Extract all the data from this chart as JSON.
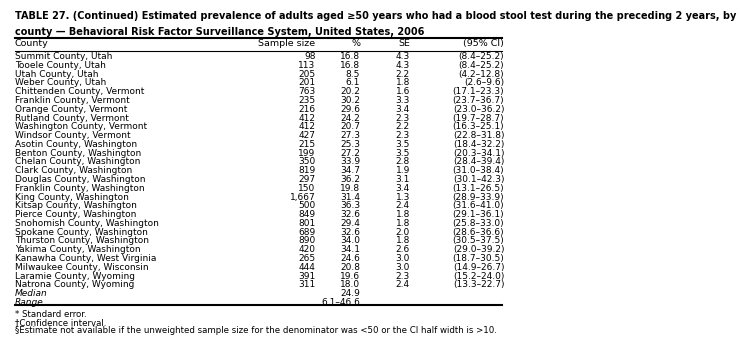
{
  "title_line1": "TABLE 27. (Continued) Estimated prevalence of adults aged ≥50 years who had a blood stool test during the preceding 2 years, by",
  "title_line2": "county — Behavioral Risk Factor Surveillance System, United States, 2006",
  "col_headers": [
    "County",
    "Sample size",
    "%",
    "SE",
    "(95% CI)"
  ],
  "rows": [
    [
      "Summit County, Utah",
      "98",
      "16.8",
      "4.3",
      "(8.4–25.2)"
    ],
    [
      "Tooele County, Utah",
      "113",
      "16.8",
      "4.3",
      "(8.4–25.2)"
    ],
    [
      "Utah County, Utah",
      "205",
      "8.5",
      "2.2",
      "(4.2–12.8)"
    ],
    [
      "Weber County, Utah",
      "201",
      "6.1",
      "1.8",
      "(2.6–9.6)"
    ],
    [
      "Chittenden County, Vermont",
      "763",
      "20.2",
      "1.6",
      "(17.1–23.3)"
    ],
    [
      "Franklin County, Vermont",
      "235",
      "30.2",
      "3.3",
      "(23.7–36.7)"
    ],
    [
      "Orange County, Vermont",
      "216",
      "29.6",
      "3.4",
      "(23.0–36.2)"
    ],
    [
      "Rutland County, Vermont",
      "412",
      "24.2",
      "2.3",
      "(19.7–28.7)"
    ],
    [
      "Washington County, Vermont",
      "412",
      "20.7",
      "2.2",
      "(16.3–25.1)"
    ],
    [
      "Windsor County, Vermont",
      "427",
      "27.3",
      "2.3",
      "(22.8–31.8)"
    ],
    [
      "Asotin County, Washington",
      "215",
      "25.3",
      "3.5",
      "(18.4–32.2)"
    ],
    [
      "Benton County, Washington",
      "199",
      "27.2",
      "3.5",
      "(20.3–34.1)"
    ],
    [
      "Chelan County, Washington",
      "350",
      "33.9",
      "2.8",
      "(28.4–39.4)"
    ],
    [
      "Clark County, Washington",
      "819",
      "34.7",
      "1.9",
      "(31.0–38.4)"
    ],
    [
      "Douglas County, Washington",
      "297",
      "36.2",
      "3.1",
      "(30.1–42.3)"
    ],
    [
      "Franklin County, Washington",
      "150",
      "19.8",
      "3.4",
      "(13.1–26.5)"
    ],
    [
      "King County, Washington",
      "1,667",
      "31.4",
      "1.3",
      "(28.9–33.9)"
    ],
    [
      "Kitsap County, Washington",
      "500",
      "36.3",
      "2.4",
      "(31.6–41.0)"
    ],
    [
      "Pierce County, Washington",
      "849",
      "32.6",
      "1.8",
      "(29.1–36.1)"
    ],
    [
      "Snohomish County, Washington",
      "801",
      "29.4",
      "1.8",
      "(25.8–33.0)"
    ],
    [
      "Spokane County, Washington",
      "689",
      "32.6",
      "2.0",
      "(28.6–36.6)"
    ],
    [
      "Thurston County, Washington",
      "890",
      "34.0",
      "1.8",
      "(30.5–37.5)"
    ],
    [
      "Yakima County, Washington",
      "420",
      "34.1",
      "2.6",
      "(29.0–39.2)"
    ],
    [
      "Kanawha County, West Virginia",
      "265",
      "24.6",
      "3.0",
      "(18.7–30.5)"
    ],
    [
      "Milwaukee County, Wisconsin",
      "444",
      "20.8",
      "3.0",
      "(14.9–26.7)"
    ],
    [
      "Laramie County, Wyoming",
      "391",
      "19.6",
      "2.3",
      "(15.2–24.0)"
    ],
    [
      "Natrona County, Wyoming",
      "311",
      "18.0",
      "2.4",
      "(13.3–22.7)"
    ]
  ],
  "footer_rows": [
    [
      "Median",
      "",
      "24.9",
      "",
      ""
    ],
    [
      "Range",
      "",
      "6.1–46.6",
      "",
      ""
    ]
  ],
  "footnotes": [
    "* Standard error.",
    "†Confidence interval.",
    "§Estimate not available if the unweighted sample size for the denominator was <50 or the CI half width is >10."
  ],
  "text_color": "#000000",
  "font_size": 6.5,
  "header_font_size": 6.8,
  "title_font_size": 7.0
}
